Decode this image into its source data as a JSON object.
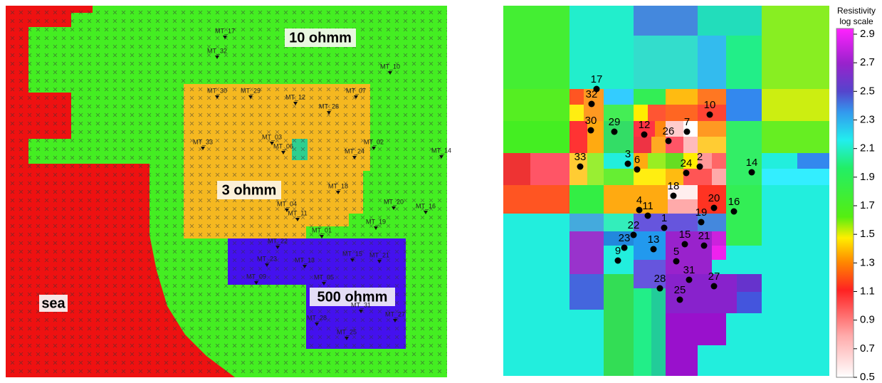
{
  "left_panel": {
    "region_labels": {
      "background": "10 ohmm",
      "conductor": "3 ohmm",
      "resistor": "500 ohmm",
      "sea": "sea"
    },
    "stations": [
      "MT_17",
      "MT_32",
      "MT_10",
      "MT_30",
      "MT_29",
      "MT_07",
      "MT_12",
      "MT_26",
      "MT_33",
      "MT_03",
      "MT_06",
      "MT_02",
      "MT_24",
      "MT_14",
      "MT_18",
      "MT_04",
      "MT_11",
      "MT_20",
      "MT_16",
      "MT_19",
      "MT_01",
      "MT_22",
      "MT_23",
      "MT_13",
      "MT_15",
      "MT_21",
      "MT_09",
      "MT_05",
      "MT_31",
      "MT_27",
      "MT_28",
      "MT_25"
    ]
  },
  "right_panel": {
    "colorbar": {
      "title": [
        "Resistivity",
        "log scale"
      ],
      "ticks": [
        2.9,
        2.7,
        2.5,
        2.3,
        2.1,
        1.9,
        1.7,
        1.5,
        1.3,
        1.1,
        0.9,
        0.7,
        0.5
      ]
    },
    "stations": [
      "17",
      "32",
      "30",
      "29",
      "12",
      "26",
      "7",
      "10",
      "3",
      "6",
      "33",
      "24",
      "2",
      "14",
      "18",
      "4",
      "11",
      "20",
      "16",
      "19",
      "1",
      "22",
      "23",
      "13",
      "15",
      "21",
      "9",
      "5",
      "31",
      "27",
      "28",
      "25"
    ]
  }
}
